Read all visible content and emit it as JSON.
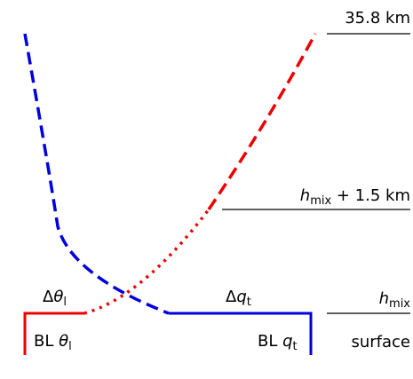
{
  "levels": {
    "top": "35.8 km",
    "upper": {
      "var": "h",
      "sub": "mix",
      "suffix": " + 1.5 km"
    },
    "mix": {
      "var": "h",
      "sub": "mix"
    },
    "surface": "surface"
  },
  "jumps": {
    "theta": {
      "prefix": "Δ",
      "var": "θ",
      "sub": "l"
    },
    "q": {
      "prefix": "Δ",
      "var": "q",
      "sub": "t"
    }
  },
  "boundary_layer": {
    "theta": {
      "prefix": "BL ",
      "var": "θ",
      "sub": "l"
    },
    "q": {
      "prefix": "BL ",
      "var": "q",
      "sub": "t"
    }
  }
}
